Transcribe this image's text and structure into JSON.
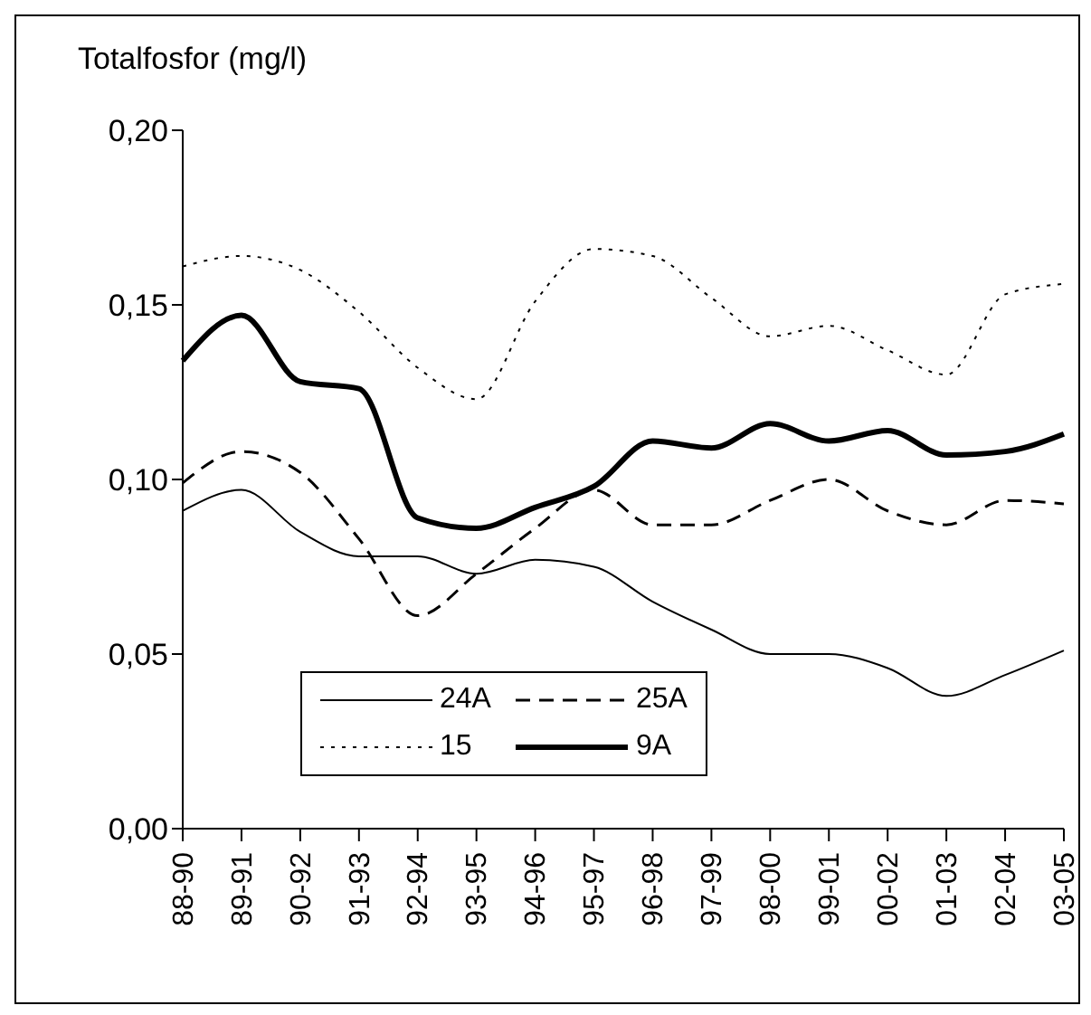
{
  "chart_data": {
    "type": "line",
    "ylabel": "Totalfosfor (mg/l)",
    "categories": [
      "88-90",
      "89-91",
      "90-92",
      "91-93",
      "92-94",
      "93-95",
      "94-96",
      "95-97",
      "96-98",
      "97-99",
      "98-00",
      "99-01",
      "00-02",
      "01-03",
      "02-04",
      "03-05"
    ],
    "series": [
      {
        "name": "24A",
        "color": "#000000",
        "line_style": "solid",
        "values": [
          0.091,
          0.097,
          0.085,
          0.078,
          0.078,
          0.073,
          0.077,
          0.075,
          0.065,
          0.057,
          0.05,
          0.05,
          0.046,
          0.038,
          0.044,
          0.051
        ]
      },
      {
        "name": "25A",
        "color": "#000000",
        "line_style": "dashed",
        "values": [
          0.099,
          0.108,
          0.102,
          0.083,
          0.061,
          0.073,
          0.086,
          0.097,
          0.087,
          0.087,
          0.094,
          0.1,
          0.091,
          0.087,
          0.094,
          0.093
        ]
      },
      {
        "name": "15",
        "color": "#000000",
        "line_style": "dotted",
        "values": [
          0.161,
          0.164,
          0.16,
          0.148,
          0.132,
          0.123,
          0.151,
          0.166,
          0.164,
          0.152,
          0.141,
          0.144,
          0.137,
          0.13,
          0.153,
          0.156
        ]
      },
      {
        "name": "9A",
        "color": "#000000",
        "line_style": "solid",
        "values": [
          0.134,
          0.147,
          0.128,
          0.126,
          0.089,
          0.086,
          0.092,
          0.098,
          0.111,
          0.109,
          0.116,
          0.111,
          0.114,
          0.107,
          0.108,
          0.113
        ]
      }
    ],
    "ylim": [
      0,
      0.2
    ],
    "yticks": [
      {
        "value": 0,
        "label": "0,00"
      },
      {
        "value": 0.05,
        "label": "0,05"
      },
      {
        "value": 0.1,
        "label": "0,10"
      },
      {
        "value": 0.15,
        "label": "0,15"
      },
      {
        "value": 0.2,
        "label": "0,20"
      }
    ],
    "grid": false,
    "legend": "bottom",
    "marker": "none"
  }
}
